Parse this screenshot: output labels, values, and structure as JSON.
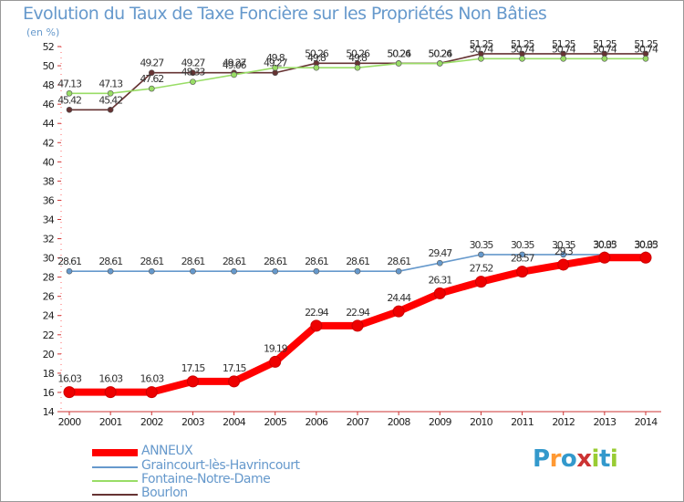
{
  "title": "Evolution du Taux de Taxe Foncière sur les Propriétés Non Bâties",
  "unit": "(en %)",
  "logo": {
    "chars": [
      "P",
      "r",
      "o",
      "x",
      "i",
      "t",
      "i"
    ],
    "colors": [
      "#3399cc",
      "#ff9933",
      "#3399cc",
      "#cc3333",
      "#99cc33",
      "#3399cc",
      "#99cc33"
    ]
  },
  "chart_data": {
    "type": "line",
    "title": "Evolution du Taux de Taxe Foncière sur les Propriétés Non Bâties",
    "ylabel": "(en %)",
    "xlabel": "",
    "ylim": [
      14,
      52
    ],
    "yticks": [
      14,
      16,
      18,
      20,
      22,
      24,
      26,
      28,
      30,
      32,
      34,
      36,
      38,
      40,
      42,
      44,
      46,
      48,
      50,
      52
    ],
    "grid": false,
    "legend_position": "bottom-left",
    "x": [
      "2000",
      "2001",
      "2002",
      "2003",
      "2004",
      "2005",
      "2006",
      "2007",
      "2008",
      "2009",
      "2010",
      "2011",
      "2012",
      "2013",
      "2014"
    ],
    "series": [
      {
        "name": "ANNEUX",
        "color": "#ff0000",
        "values": [
          16.03,
          16.03,
          16.03,
          17.15,
          17.15,
          19.19,
          22.94,
          22.94,
          24.44,
          26.31,
          27.52,
          28.57,
          29.3,
          30.03,
          30.03
        ],
        "labels": [
          "16.03",
          "16.03",
          "16.03",
          "17.15",
          "17.15",
          "19.19",
          "22.94",
          "22.94",
          "24.44",
          "26.31",
          "27.52",
          "28.57",
          "29.3",
          "30.03",
          "30.03"
        ]
      },
      {
        "name": "Graincourt-lès-Havrincourt",
        "color": "#6699cc",
        "values": [
          28.61,
          28.61,
          28.61,
          28.61,
          28.61,
          28.61,
          28.61,
          28.61,
          28.61,
          29.47,
          30.35,
          30.35,
          30.35,
          30.35,
          30.35
        ],
        "labels": [
          "28.61",
          "28.61",
          "28.61",
          "28.61",
          "28.61",
          "28.61",
          "28.61",
          "28.61",
          "28.61",
          "29.47",
          "30.35",
          "30.35",
          "30.35",
          "30.35",
          "30.35"
        ]
      },
      {
        "name": "Fontaine-Notre-Dame",
        "color": "#99dd66",
        "values": [
          47.13,
          47.13,
          47.62,
          48.33,
          49.06,
          49.8,
          49.8,
          49.8,
          50.24,
          50.24,
          50.74,
          50.74,
          50.74,
          50.74,
          50.74
        ],
        "labels": [
          "47.13",
          "47.13",
          "47.62",
          "48.33",
          "49.06",
          "49.8",
          "49.8",
          "49.8",
          "50.24",
          "50.24",
          "50.74",
          "50.74",
          "50.74",
          "50.74",
          "50.74"
        ]
      },
      {
        "name": "Bourlon",
        "color": "#663333",
        "values": [
          45.42,
          45.42,
          49.27,
          49.27,
          49.27,
          49.27,
          50.26,
          50.26,
          50.26,
          50.26,
          51.25,
          51.25,
          51.25,
          51.25,
          51.25
        ],
        "labels": [
          "45.42",
          "45.42",
          "49.27",
          "49.27",
          "49.27",
          "49.27",
          "50.26",
          "50.26",
          "50.26",
          "50.26",
          "51.25",
          "51.25",
          "51.25",
          "51.25",
          "51.25"
        ]
      }
    ]
  }
}
